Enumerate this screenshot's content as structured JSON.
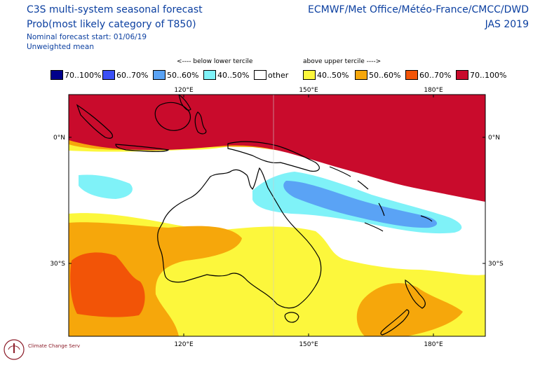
{
  "header": {
    "title_line1": "C3S multi-system seasonal forecast",
    "title_line2": "Prob(most likely category of T850)",
    "title_line3": "Nominal forecast start: 01/06/19",
    "title_line4": "Unweighted mean",
    "agencies": "ECMWF/Met Office/Météo-France/CMCC/DWD",
    "season": "JAS 2019"
  },
  "legend": {
    "below_label": "<---- below lower tercile",
    "above_label": "above upper tercile ---->",
    "items": [
      {
        "label": "70..100%",
        "color": "#00008c"
      },
      {
        "label": "60..70%",
        "color": "#3b50f6"
      },
      {
        "label": "50..60%",
        "color": "#5aa3f5"
      },
      {
        "label": "40..50%",
        "color": "#7ff2f8"
      },
      {
        "label": "other",
        "color": "#ffffff"
      },
      {
        "label": "40..50%",
        "color": "#fcf73c"
      },
      {
        "label": "50..60%",
        "color": "#f6a70b"
      },
      {
        "label": "60..70%",
        "color": "#f25407"
      },
      {
        "label": "70..100%",
        "color": "#c90b2c"
      }
    ]
  },
  "map": {
    "lon_ticks_top": [
      "120°E",
      "150°E",
      "180°E"
    ],
    "lon_ticks_bottom": [
      "120°E",
      "150°E",
      "180°E"
    ],
    "lat_ticks_left": [
      "0°N",
      "30°S"
    ],
    "lat_ticks_right": [
      "0°N",
      "30°S"
    ]
  },
  "logo": {
    "text": "Climate Change Service",
    "icon": "c3s-logo-icon"
  }
}
